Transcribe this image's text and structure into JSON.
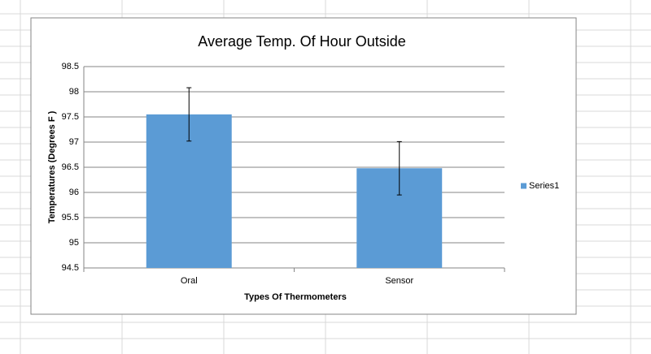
{
  "chart_data": {
    "type": "bar",
    "title": "Average Temp. Of Hour Outside",
    "x_label": "Types Of Thermometers",
    "y_label": "Temperatures (Degrees F )",
    "categories": [
      "Oral",
      "Sensor"
    ],
    "series": [
      {
        "name": "Series1",
        "color": "#5b9bd5",
        "values": [
          97.55,
          96.48
        ],
        "errors": [
          0.53,
          0.53
        ]
      }
    ],
    "ylim": [
      94.5,
      98.5
    ],
    "yticks": [
      94.5,
      95,
      95.5,
      96,
      96.5,
      97,
      97.5,
      98,
      98.5
    ],
    "grid": true,
    "legend": "right"
  }
}
